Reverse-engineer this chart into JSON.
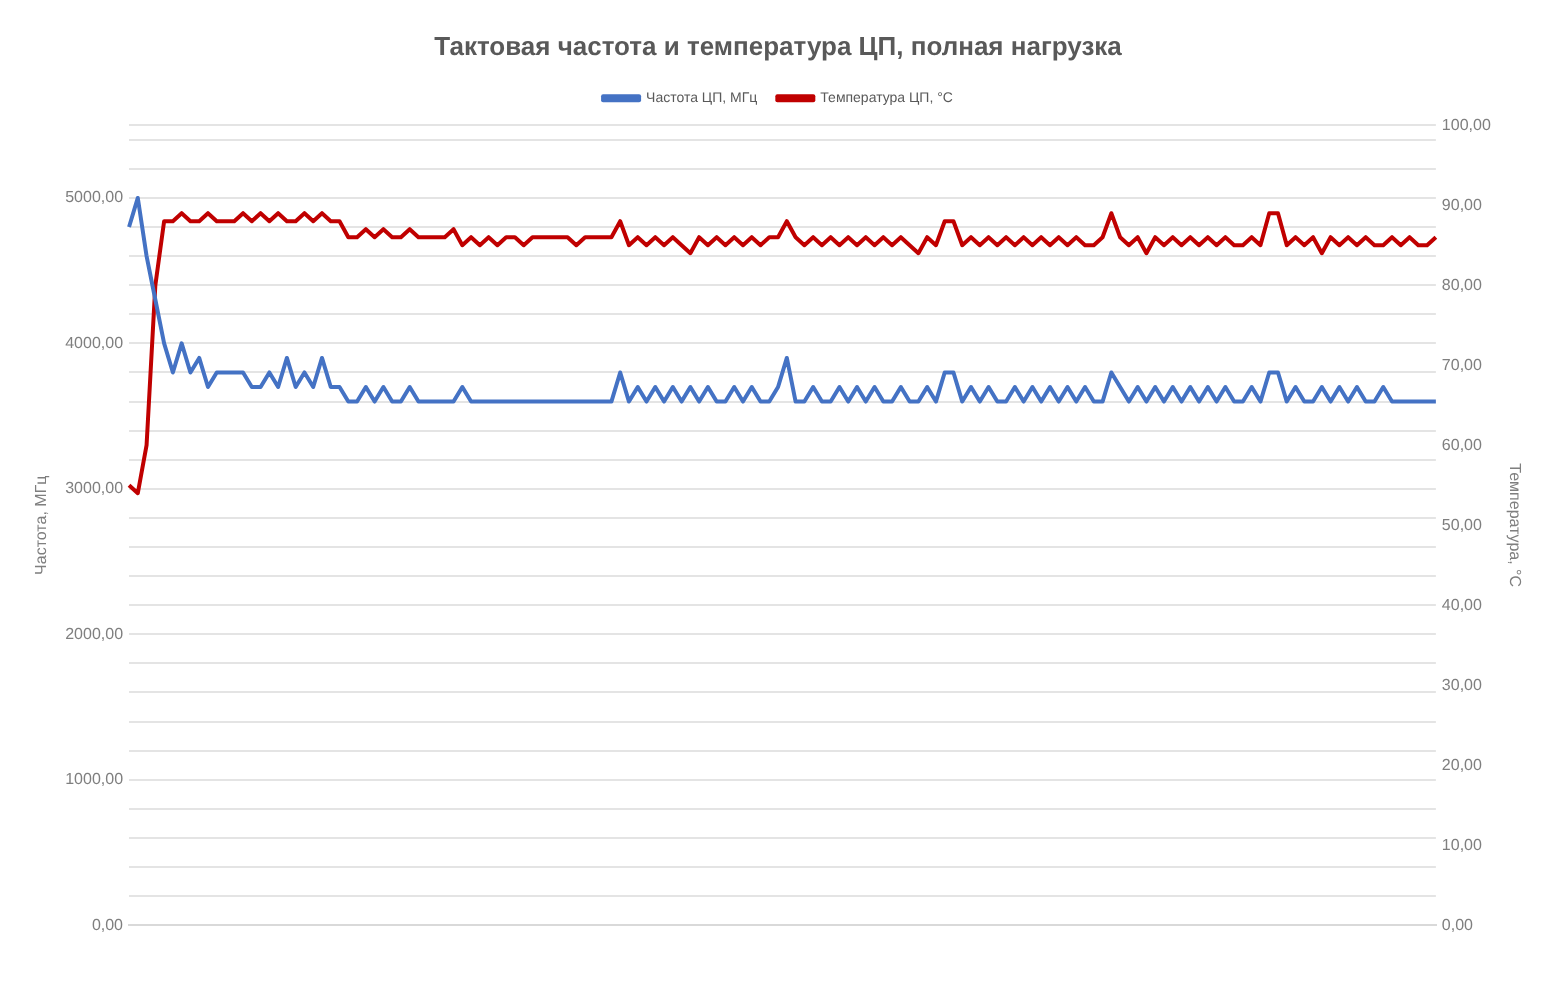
{
  "chart_data": {
    "type": "line",
    "title": "Тактовая частота и температура ЦП, полная нагрузка",
    "ylabel": "Частота, МГц",
    "y2label": "Температура, °С",
    "legend": "top",
    "grid": "y",
    "marker": "none",
    "line_style": "solid",
    "categories": [
      null,
      null,
      null,
      null,
      null,
      null,
      null,
      null,
      null,
      null,
      null,
      null,
      null,
      null,
      null,
      null,
      null,
      null,
      null,
      null,
      null,
      null,
      null,
      null,
      null,
      null,
      null,
      null,
      null,
      null,
      null,
      null,
      null,
      null,
      null,
      null,
      null,
      null,
      null,
      null,
      null,
      null,
      null,
      null,
      null,
      null,
      null,
      null,
      null,
      null,
      null,
      null,
      null,
      null,
      null,
      null,
      null,
      null,
      null,
      null,
      null,
      null,
      null,
      null,
      null,
      null,
      null,
      null,
      null,
      null,
      null,
      null,
      null,
      null,
      null,
      null,
      null,
      null,
      null,
      null,
      null,
      null,
      null,
      null,
      null,
      null,
      null,
      null,
      null,
      null,
      null,
      null,
      null,
      null,
      null,
      null,
      null,
      null,
      null,
      null,
      null,
      null,
      null,
      null,
      null,
      null,
      null,
      null,
      null,
      null,
      null,
      null,
      null,
      null,
      null,
      null,
      null,
      null,
      null,
      null,
      null,
      null,
      null,
      null,
      null,
      null,
      null,
      null,
      null,
      null,
      null,
      null,
      null,
      null,
      null,
      null,
      null,
      null,
      null,
      null,
      null,
      null,
      null,
      null,
      null,
      null,
      null,
      null,
      null,
      null
    ],
    "ylim": [
      0,
      5500
    ],
    "yticks": [
      {
        "value": 0,
        "label": "0,00"
      },
      {
        "value": 200,
        "label": null
      },
      {
        "value": 400,
        "label": null
      },
      {
        "value": 600,
        "label": null
      },
      {
        "value": 800,
        "label": null
      },
      {
        "value": 1000,
        "label": "1000,00"
      },
      {
        "value": 1200,
        "label": null
      },
      {
        "value": 1400,
        "label": null
      },
      {
        "value": 1600,
        "label": null
      },
      {
        "value": 1800,
        "label": null
      },
      {
        "value": 2000,
        "label": "2000,00"
      },
      {
        "value": 2200,
        "label": null
      },
      {
        "value": 2400,
        "label": null
      },
      {
        "value": 2600,
        "label": null
      },
      {
        "value": 2800,
        "label": null
      },
      {
        "value": 3000,
        "label": "3000,00"
      },
      {
        "value": 3200,
        "label": null
      },
      {
        "value": 3400,
        "label": null
      },
      {
        "value": 3600,
        "label": null
      },
      {
        "value": 3800,
        "label": null
      },
      {
        "value": 4000,
        "label": "4000,00"
      },
      {
        "value": 4200,
        "label": null
      },
      {
        "value": 4400,
        "label": null
      },
      {
        "value": 4600,
        "label": null
      },
      {
        "value": 4800,
        "label": null
      },
      {
        "value": 5000,
        "label": "5000,00"
      },
      {
        "value": 5200,
        "label": null
      },
      {
        "value": 5400,
        "label": null
      },
      {
        "value": 5500,
        "label": null
      }
    ],
    "y2lim": [
      0,
      100
    ],
    "y2ticks": [
      {
        "value": 0,
        "label": "0,00"
      },
      {
        "value": 10,
        "label": "10,00"
      },
      {
        "value": 20,
        "label": "20,00"
      },
      {
        "value": 30,
        "label": "30,00"
      },
      {
        "value": 40,
        "label": "40,00"
      },
      {
        "value": 50,
        "label": "50,00"
      },
      {
        "value": 60,
        "label": "60,00"
      },
      {
        "value": 70,
        "label": "70,00"
      },
      {
        "value": 80,
        "label": "80,00"
      },
      {
        "value": 90,
        "label": "90,00"
      },
      {
        "value": 100,
        "label": "100,00"
      }
    ],
    "series": [
      {
        "name": "Частота ЦП, МГц",
        "color": "#4472c4",
        "values": [
          4800,
          5000,
          4600,
          4300,
          4000,
          3800,
          4000,
          3800,
          3900,
          3700,
          3800,
          3800,
          3800,
          3800,
          3700,
          3700,
          3800,
          3700,
          3900,
          3700,
          3800,
          3700,
          3900,
          3700,
          3700,
          3600,
          3600,
          3700,
          3600,
          3700,
          3600,
          3600,
          3700,
          3600,
          3600,
          3600,
          3600,
          3600,
          3700,
          3600,
          3600,
          3600,
          3600,
          3600,
          3600,
          3600,
          3600,
          3600,
          3600,
          3600,
          3600,
          3600,
          3600,
          3600,
          3600,
          3600,
          3800,
          3600,
          3700,
          3600,
          3700,
          3600,
          3700,
          3600,
          3700,
          3600,
          3700,
          3600,
          3600,
          3700,
          3600,
          3700,
          3600,
          3600,
          3700,
          3900,
          3600,
          3600,
          3700,
          3600,
          3600,
          3700,
          3600,
          3700,
          3600,
          3700,
          3600,
          3600,
          3700,
          3600,
          3600,
          3700,
          3600,
          3800,
          3800,
          3600,
          3700,
          3600,
          3700,
          3600,
          3600,
          3700,
          3600,
          3700,
          3600,
          3700,
          3600,
          3700,
          3600,
          3700,
          3600,
          3600,
          3800,
          3700,
          3600,
          3700,
          3600,
          3700,
          3600,
          3700,
          3600,
          3700,
          3600,
          3700,
          3600,
          3700,
          3600,
          3600,
          3700,
          3600,
          3800,
          3800,
          3600,
          3700,
          3600,
          3600,
          3700,
          3600,
          3700,
          3600,
          3700,
          3600,
          3600,
          3700,
          3600,
          3600,
          3600,
          3600,
          3600,
          3600
        ]
      },
      {
        "name": "Температура ЦП, °С",
        "color": "#c00000",
        "axis": "y2",
        "values": [
          55,
          54,
          60,
          80,
          88,
          88,
          89,
          88,
          88,
          89,
          88,
          88,
          88,
          89,
          88,
          89,
          88,
          89,
          88,
          88,
          89,
          88,
          89,
          88,
          88,
          86,
          86,
          87,
          86,
          87,
          86,
          86,
          87,
          86,
          86,
          86,
          86,
          87,
          85,
          86,
          85,
          86,
          85,
          86,
          86,
          85,
          86,
          86,
          86,
          86,
          86,
          85,
          86,
          86,
          86,
          86,
          88,
          85,
          86,
          85,
          86,
          85,
          86,
          85,
          84,
          86,
          85,
          86,
          85,
          86,
          85,
          86,
          85,
          86,
          86,
          88,
          86,
          85,
          86,
          85,
          86,
          85,
          86,
          85,
          86,
          85,
          86,
          85,
          86,
          85,
          84,
          86,
          85,
          88,
          88,
          85,
          86,
          85,
          86,
          85,
          86,
          85,
          86,
          85,
          86,
          85,
          86,
          85,
          86,
          85,
          85,
          86,
          89,
          86,
          85,
          86,
          84,
          86,
          85,
          86,
          85,
          86,
          85,
          86,
          85,
          86,
          85,
          85,
          86,
          85,
          89,
          89,
          85,
          86,
          85,
          86,
          84,
          86,
          85,
          86,
          85,
          86,
          85,
          85,
          86,
          85,
          86,
          85,
          85,
          86
        ]
      }
    ]
  }
}
